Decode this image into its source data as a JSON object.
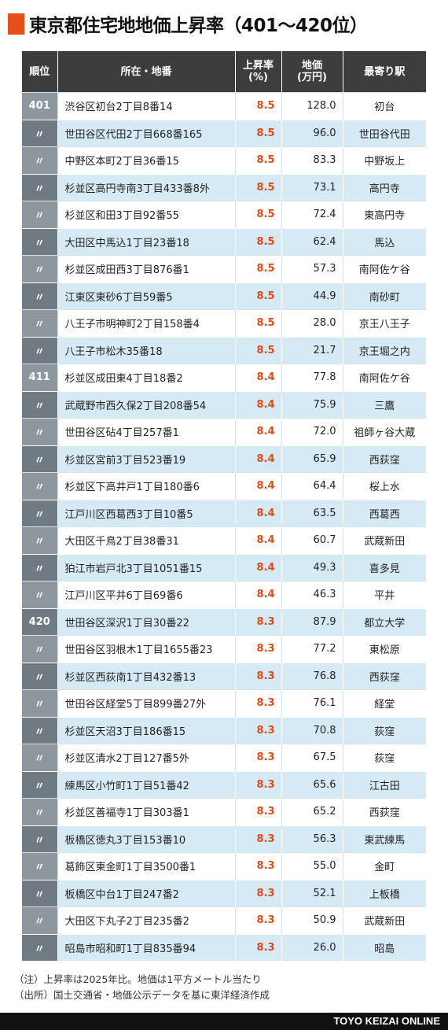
{
  "title": "東京都住宅地地価上昇率（401〜420位）",
  "colors": {
    "accent": "#e8501b",
    "header_bg": "#3d3d3d",
    "row_alt": "#d6eaf6",
    "rate_text": "#e04a17"
  },
  "table": {
    "headers": [
      "順位",
      "所在・地番",
      "上昇率\n(%)",
      "地価\n(万円)",
      "最寄り駅"
    ],
    "rows": [
      [
        "401",
        "渋谷区初台2丁目8番14",
        "8.5",
        "128.0",
        "初台"
      ],
      [
        "〃",
        "世田谷区代田2丁目668番165",
        "8.5",
        "96.0",
        "世田谷代田"
      ],
      [
        "〃",
        "中野区本町2丁目36番15",
        "8.5",
        "83.3",
        "中野坂上"
      ],
      [
        "〃",
        "杉並区高円寺南3丁目433番8外",
        "8.5",
        "73.1",
        "高円寺"
      ],
      [
        "〃",
        "杉並区和田3丁目92番55",
        "8.5",
        "72.4",
        "東高円寺"
      ],
      [
        "〃",
        "大田区中馬込1丁目23番18",
        "8.5",
        "62.4",
        "馬込"
      ],
      [
        "〃",
        "杉並区成田西3丁目876番1",
        "8.5",
        "57.3",
        "南阿佐ケ谷"
      ],
      [
        "〃",
        "江東区東砂6丁目59番5",
        "8.5",
        "44.9",
        "南砂町"
      ],
      [
        "〃",
        "八王子市明神町2丁目158番4",
        "8.5",
        "28.0",
        "京王八王子"
      ],
      [
        "〃",
        "八王子市松木35番18",
        "8.5",
        "21.7",
        "京王堀之内"
      ],
      [
        "411",
        "杉並区成田東4丁目18番2",
        "8.4",
        "77.8",
        "南阿佐ケ谷"
      ],
      [
        "〃",
        "武蔵野市西久保2丁目208番54",
        "8.4",
        "75.9",
        "三鷹"
      ],
      [
        "〃",
        "世田谷区砧4丁目257番1",
        "8.4",
        "72.0",
        "祖師ヶ谷大蔵"
      ],
      [
        "〃",
        "杉並区宮前3丁目523番19",
        "8.4",
        "65.9",
        "西荻窪"
      ],
      [
        "〃",
        "杉並区下高井戸1丁目180番6",
        "8.4",
        "64.4",
        "桜上水"
      ],
      [
        "〃",
        "江戸川区西葛西3丁目10番5",
        "8.4",
        "63.5",
        "西葛西"
      ],
      [
        "〃",
        "大田区千鳥2丁目38番31",
        "8.4",
        "60.7",
        "武蔵新田"
      ],
      [
        "〃",
        "狛江市岩戸北3丁目1051番15",
        "8.4",
        "49.3",
        "喜多見"
      ],
      [
        "〃",
        "江戸川区平井6丁目69番6",
        "8.4",
        "46.3",
        "平井"
      ],
      [
        "420",
        "世田谷区深沢1丁目30番22",
        "8.3",
        "87.9",
        "都立大学"
      ],
      [
        "〃",
        "世田谷区羽根木1丁目1655番23",
        "8.3",
        "77.2",
        "東松原"
      ],
      [
        "〃",
        "杉並区西荻南1丁目432番13",
        "8.3",
        "76.8",
        "西荻窪"
      ],
      [
        "〃",
        "世田谷区経堂5丁目899番27外",
        "8.3",
        "76.1",
        "経堂"
      ],
      [
        "〃",
        "杉並区天沼3丁目186番15",
        "8.3",
        "70.8",
        "荻窪"
      ],
      [
        "〃",
        "杉並区清水2丁目127番5外",
        "8.3",
        "67.5",
        "荻窪"
      ],
      [
        "〃",
        "練馬区小竹町1丁目51番42",
        "8.3",
        "65.6",
        "江古田"
      ],
      [
        "〃",
        "杉並区善福寺1丁目303番1",
        "8.3",
        "65.2",
        "西荻窪"
      ],
      [
        "〃",
        "板橋区徳丸3丁目153番10",
        "8.3",
        "56.3",
        "東武練馬"
      ],
      [
        "〃",
        "葛飾区東金町1丁目3500番1",
        "8.3",
        "55.0",
        "金町"
      ],
      [
        "〃",
        "板橋区中台1丁目247番2",
        "8.3",
        "52.1",
        "上板橋"
      ],
      [
        "〃",
        "大田区下丸子2丁目235番2",
        "8.3",
        "50.9",
        "武蔵新田"
      ],
      [
        "〃",
        "昭島市昭和町1丁目835番94",
        "8.3",
        "26.0",
        "昭島"
      ]
    ]
  },
  "notes": [
    "（注）上昇率は2025年比。地価は1平方メートル当たり",
    "（出所）国土交通省・地価公示データを基に東洋経済作成"
  ],
  "footer": "TOYO KEIZAI ONLINE"
}
